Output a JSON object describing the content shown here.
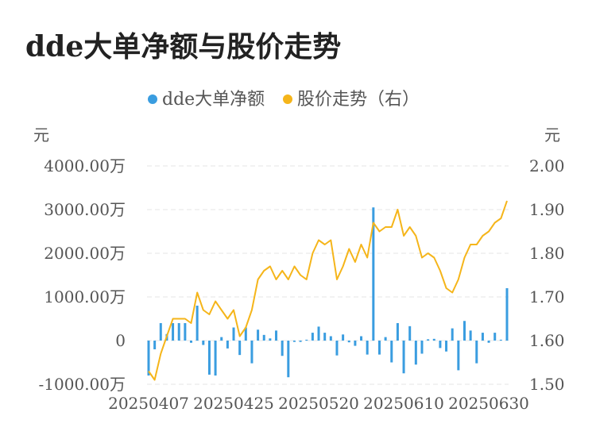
{
  "title": "dde大单净额与股价走势",
  "chart_data": {
    "type": "bar+line",
    "title": "dde大单净额与股价走势",
    "legend": [
      "dde大单净额",
      "股价走势（右）"
    ],
    "legend_position": "top-center",
    "y_left_unit": "元",
    "y_right_unit": "元",
    "y_left_ticks": [
      "4000.00万",
      "3000.00万",
      "2000.00万",
      "1000.00万",
      "0",
      "-1000.00万"
    ],
    "y_right_ticks": [
      "2.00",
      "1.90",
      "1.80",
      "1.70",
      "1.60",
      "1.50"
    ],
    "y_left_range": [
      -1000,
      4000
    ],
    "y_right_range": [
      1.5,
      2.0
    ],
    "x_tick_labels": [
      "20250407",
      "20250425",
      "20250520",
      "20250610",
      "20250630"
    ],
    "grid": true,
    "colors": {
      "bar": "#3a9de0",
      "line": "#f5b51a"
    },
    "series": [
      {
        "name": "dde大单净额",
        "kind": "bar",
        "unit": "万",
        "values": [
          -800,
          -200,
          400,
          150,
          400,
          400,
          400,
          -50,
          800,
          -100,
          -780,
          -800,
          80,
          -180,
          300,
          -330,
          300,
          -520,
          250,
          130,
          50,
          230,
          -350,
          -840,
          -30,
          -30,
          20,
          180,
          320,
          180,
          100,
          -340,
          140,
          -40,
          -120,
          100,
          -320,
          3050,
          -320,
          80,
          -500,
          400,
          -750,
          330,
          -550,
          -300,
          30,
          40,
          -170,
          -250,
          280,
          -680,
          450,
          230,
          -520,
          180,
          -50,
          180,
          20,
          1200
        ]
      },
      {
        "name": "股价走势（右）",
        "kind": "line",
        "unit": "元",
        "values": [
          1.53,
          1.51,
          1.57,
          1.61,
          1.65,
          1.65,
          1.65,
          1.64,
          1.71,
          1.67,
          1.66,
          1.69,
          1.67,
          1.65,
          1.67,
          1.61,
          1.63,
          1.67,
          1.74,
          1.76,
          1.77,
          1.74,
          1.76,
          1.74,
          1.77,
          1.75,
          1.74,
          1.8,
          1.83,
          1.82,
          1.83,
          1.74,
          1.77,
          1.81,
          1.78,
          1.82,
          1.79,
          1.87,
          1.85,
          1.86,
          1.86,
          1.9,
          1.84,
          1.86,
          1.84,
          1.79,
          1.8,
          1.79,
          1.76,
          1.72,
          1.71,
          1.74,
          1.79,
          1.82,
          1.82,
          1.84,
          1.85,
          1.87,
          1.88,
          1.92
        ]
      }
    ]
  }
}
